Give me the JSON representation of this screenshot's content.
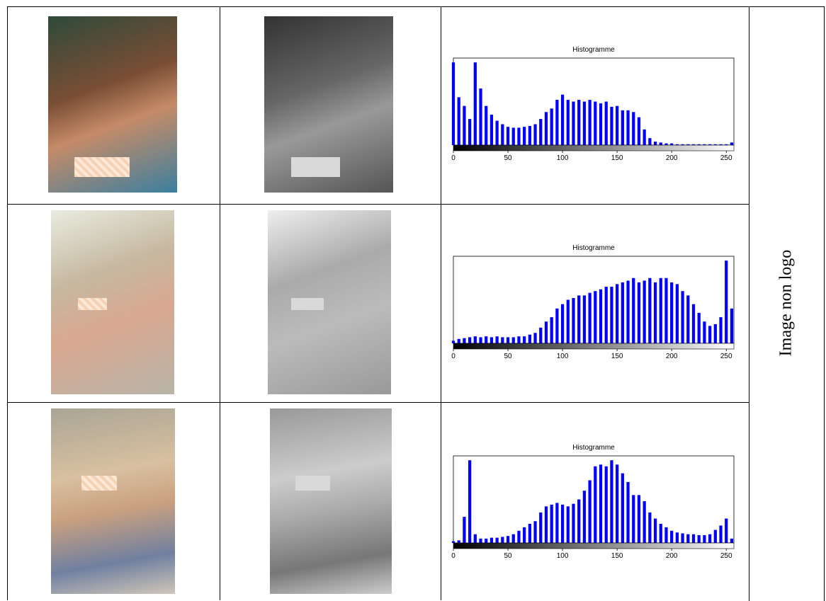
{
  "table": {
    "side_label": "Image non logo",
    "rows": [
      {
        "histogram": {
          "type": "bar",
          "title": "Histogramme",
          "color": "#0000ff",
          "x": [
            0,
            5,
            10,
            15,
            20,
            25,
            30,
            35,
            40,
            45,
            50,
            55,
            60,
            65,
            70,
            75,
            80,
            85,
            90,
            95,
            100,
            105,
            110,
            115,
            120,
            125,
            130,
            135,
            140,
            145,
            150,
            155,
            160,
            165,
            170,
            175,
            180,
            185,
            190,
            195,
            200,
            205,
            210,
            215,
            220,
            225,
            230,
            235,
            240,
            245,
            250,
            255
          ],
          "values": [
            95,
            55,
            45,
            30,
            95,
            65,
            45,
            35,
            28,
            24,
            21,
            20,
            20,
            21,
            22,
            24,
            30,
            38,
            42,
            52,
            58,
            52,
            50,
            52,
            50,
            52,
            50,
            48,
            50,
            44,
            45,
            40,
            40,
            38,
            32,
            18,
            8,
            4,
            3,
            2,
            2,
            1,
            1,
            1,
            1,
            1,
            1,
            1,
            1,
            1,
            1,
            3
          ],
          "xlim": [
            0,
            257
          ],
          "xticks": [
            0,
            50,
            100,
            150,
            200,
            250
          ],
          "ylim": [
            0,
            100
          ]
        }
      },
      {
        "histogram": {
          "type": "bar",
          "title": "Histogramme",
          "color": "#0000ff",
          "x": [
            0,
            5,
            10,
            15,
            20,
            25,
            30,
            35,
            40,
            45,
            50,
            55,
            60,
            65,
            70,
            75,
            80,
            85,
            90,
            95,
            100,
            105,
            110,
            115,
            120,
            125,
            130,
            135,
            140,
            145,
            150,
            155,
            160,
            165,
            170,
            175,
            180,
            185,
            190,
            195,
            200,
            205,
            210,
            215,
            220,
            225,
            230,
            235,
            240,
            245,
            250,
            255
          ],
          "values": [
            3,
            5,
            6,
            7,
            8,
            7,
            8,
            7,
            8,
            7,
            7,
            7,
            8,
            8,
            10,
            12,
            18,
            25,
            30,
            40,
            45,
            50,
            52,
            55,
            55,
            58,
            60,
            62,
            65,
            65,
            68,
            70,
            72,
            75,
            70,
            72,
            75,
            70,
            75,
            75,
            70,
            68,
            60,
            55,
            45,
            35,
            25,
            20,
            22,
            30,
            95,
            40
          ],
          "xlim": [
            0,
            257
          ],
          "xticks": [
            0,
            50,
            100,
            150,
            200,
            250
          ],
          "ylim": [
            0,
            100
          ]
        }
      },
      {
        "histogram": {
          "type": "bar",
          "title": "Histogramme",
          "color": "#0000ff",
          "x": [
            0,
            5,
            10,
            15,
            20,
            25,
            30,
            35,
            40,
            45,
            50,
            55,
            60,
            65,
            70,
            75,
            80,
            85,
            90,
            95,
            100,
            105,
            110,
            115,
            120,
            125,
            130,
            135,
            140,
            145,
            150,
            155,
            160,
            165,
            170,
            175,
            180,
            185,
            190,
            195,
            200,
            205,
            210,
            215,
            220,
            225,
            230,
            235,
            240,
            245,
            250,
            255
          ],
          "values": [
            2,
            3,
            30,
            95,
            10,
            5,
            5,
            6,
            6,
            7,
            8,
            10,
            14,
            18,
            22,
            25,
            35,
            42,
            44,
            46,
            44,
            42,
            45,
            50,
            60,
            72,
            88,
            90,
            88,
            95,
            90,
            80,
            70,
            55,
            55,
            48,
            35,
            28,
            22,
            18,
            14,
            12,
            11,
            10,
            10,
            9,
            9,
            10,
            15,
            20,
            28,
            5
          ],
          "xlim": [
            0,
            257
          ],
          "xticks": [
            0,
            50,
            100,
            150,
            200,
            250
          ],
          "ylim": [
            0,
            100
          ]
        }
      }
    ]
  }
}
